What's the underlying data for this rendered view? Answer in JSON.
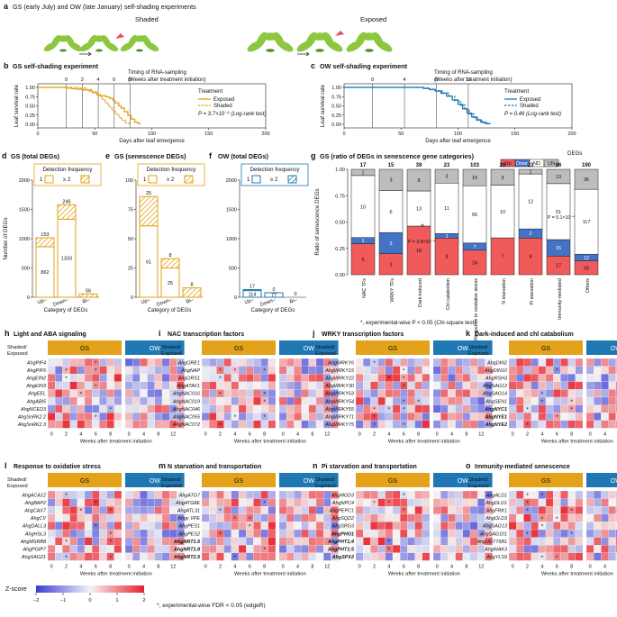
{
  "colors": {
    "gs": "#E3A21A",
    "ow": "#1F78B4",
    "up": "#F05A5A",
    "down": "#4472C4",
    "nd": "#FFFFFF",
    "un": "#BDBDBD",
    "hmin": "#3B3BD6",
    "hmid": "#F4F4F4",
    "hmax": "#E8202A",
    "plant": "#8DC63F",
    "leaf": "#A8D45A"
  },
  "panel_a": {
    "letter": "a",
    "title": "GS (early July) and OW (late January) self-shading experiments",
    "shaded_label": "Shaded",
    "exposed_label": "Exposed"
  },
  "survival": {
    "ylabel": "Leaf survival rate",
    "xlabel": "Days after leaf emergence",
    "timing_label_1": "Timing of RNA-sampling",
    "timing_label_2": "(Weeks after treatment initiation)",
    "legend_title": "Treatment",
    "legend_exposed": "Exposed",
    "legend_shaded": "Shaded",
    "yticks": [
      "0.00",
      "0.25",
      "0.50",
      "0.75",
      "1.00"
    ],
    "xticks": [
      "0",
      "50",
      "100",
      "150",
      "200"
    ]
  },
  "panel_b": {
    "letter": "b",
    "title": "GS self-shading experiment",
    "weeks": [
      "0",
      "2",
      "4",
      "6",
      "8"
    ],
    "week_days": [
      25,
      39,
      53,
      67,
      81
    ],
    "pvalue": "P = 3.7×10⁻⁶ (Log-rank test)",
    "exposed": [
      [
        0,
        1
      ],
      [
        20,
        1
      ],
      [
        25,
        0.98
      ],
      [
        30,
        0.96
      ],
      [
        35,
        0.95
      ],
      [
        40,
        0.93
      ],
      [
        45,
        0.9
      ],
      [
        48,
        0.85
      ],
      [
        52,
        0.8
      ],
      [
        55,
        0.77
      ],
      [
        60,
        0.74
      ],
      [
        63,
        0.7
      ],
      [
        66,
        0.64
      ],
      [
        68,
        0.58
      ],
      [
        71,
        0.5
      ],
      [
        73,
        0.44
      ],
      [
        76,
        0.34
      ],
      [
        79,
        0.24
      ],
      [
        82,
        0.14
      ],
      [
        85,
        0.06
      ],
      [
        88,
        0.02
      ],
      [
        90,
        0
      ]
    ],
    "shaded": [
      [
        0,
        1
      ],
      [
        25,
        1
      ],
      [
        35,
        0.98
      ],
      [
        42,
        0.94
      ],
      [
        48,
        0.88
      ],
      [
        52,
        0.78
      ],
      [
        56,
        0.68
      ],
      [
        59,
        0.58
      ],
      [
        62,
        0.48
      ],
      [
        65,
        0.38
      ],
      [
        68,
        0.28
      ],
      [
        71,
        0.18
      ],
      [
        74,
        0.1
      ],
      [
        77,
        0.04
      ],
      [
        80,
        0
      ]
    ]
  },
  "panel_c": {
    "letter": "c",
    "title": "OW self-shading experiment",
    "weeks": [
      "0",
      "4",
      "8",
      "12"
    ],
    "week_days": [
      25,
      53,
      81,
      109
    ],
    "pvalue": "P = 0.46 (Log-rank test)",
    "exposed": [
      [
        0,
        1
      ],
      [
        60,
        1
      ],
      [
        70,
        0.97
      ],
      [
        75,
        0.94
      ],
      [
        80,
        0.9
      ],
      [
        85,
        0.84
      ],
      [
        90,
        0.76
      ],
      [
        95,
        0.66
      ],
      [
        100,
        0.54
      ],
      [
        104,
        0.42
      ],
      [
        108,
        0.3
      ],
      [
        112,
        0.2
      ],
      [
        116,
        0.12
      ],
      [
        120,
        0.06
      ],
      [
        124,
        0.02
      ],
      [
        128,
        0
      ]
    ],
    "shaded": [
      [
        0,
        1
      ],
      [
        58,
        1
      ],
      [
        68,
        0.98
      ],
      [
        74,
        0.95
      ],
      [
        80,
        0.91
      ],
      [
        86,
        0.85
      ],
      [
        92,
        0.76
      ],
      [
        97,
        0.64
      ],
      [
        102,
        0.52
      ],
      [
        106,
        0.4
      ],
      [
        110,
        0.28
      ],
      [
        114,
        0.18
      ],
      [
        118,
        0.1
      ],
      [
        122,
        0.04
      ],
      [
        126,
        0
      ]
    ]
  },
  "deg_panels": {
    "ylabel": "Number of DEGs",
    "xlabel": "Category of DEGs",
    "legend_title": "Detection frequency",
    "legend_1": "1",
    "legend_2": "≥ 2",
    "categories": [
      "Up–",
      "Down–",
      "Bi–"
    ]
  },
  "panel_d": {
    "letter": "d",
    "title": "GS (total DEGs)",
    "ymax": 2000,
    "yticks": [
      "0",
      "500",
      "1000",
      "1500",
      "2000"
    ],
    "once": [
      862,
      1333,
      0
    ],
    "twice": [
      153,
      246,
      56
    ],
    "once_labels": [
      "862",
      "1333",
      ""
    ],
    "twice_labels": [
      "153",
      "246",
      "56"
    ]
  },
  "panel_e": {
    "letter": "e",
    "title": "GS (senescence DEGs)",
    "ymax": 100,
    "yticks": [
      "0",
      "25",
      "50",
      "75",
      "100"
    ],
    "once": [
      61,
      25,
      0
    ],
    "twice": [
      25,
      8,
      8
    ],
    "once_labels": [
      "61",
      "25",
      ""
    ],
    "twice_labels": [
      "25",
      "8",
      "8"
    ]
  },
  "panel_f": {
    "letter": "f",
    "title": "OW (total DEGs)",
    "ymax": 2000,
    "yticks": [
      "0",
      "500",
      "1000",
      "1500",
      "2000"
    ],
    "once": [
      114,
      77,
      0
    ],
    "twice": [
      17,
      0,
      0
    ],
    "once_labels": [
      "114",
      "77",
      ""
    ],
    "twice_labels": [
      "17",
      "0",
      "0"
    ]
  },
  "panel_g": {
    "letter": "g",
    "title": "GS (ratio of DEGs in senescence gene categories)",
    "legend_title": "DEGs",
    "legend_up": "Up",
    "legend_down": "Down",
    "legend_nd": "ND",
    "legend_un": "UN",
    "ylabel": "Ratio of senescence DEGs",
    "yticks": [
      "0.00",
      "0.25",
      "0.50",
      "0.75",
      "1.00"
    ],
    "footnote": "*, experimental-wise P < 0.05 (Chi-square test)",
    "totals": [
      "17",
      "15",
      "39",
      "23",
      "103",
      "20",
      "23",
      "96",
      "190"
    ],
    "categories": [
      "NAC TFs",
      "WRKY TFs",
      "Dark-induced",
      "Chl catabolism",
      "Response to oxidative stress",
      "N starvation",
      "Pi starvation",
      "Immunity-mediated",
      "Others"
    ],
    "up": [
      5,
      3,
      18,
      8,
      24,
      7,
      8,
      17,
      25
    ],
    "down": [
      1,
      3,
      0,
      1,
      7,
      0,
      2,
      15,
      12
    ],
    "nd": [
      10,
      6,
      13,
      11,
      56,
      10,
      12,
      51,
      117
    ],
    "un": [
      1,
      3,
      8,
      3,
      16,
      3,
      1,
      13,
      36
    ],
    "up_labels": [
      "5",
      "3",
      "18",
      "8",
      "24",
      "7",
      "8",
      "17",
      "25"
    ],
    "down_labels": [
      "1",
      "3",
      "",
      "1",
      "7",
      "",
      "2",
      "15",
      "12"
    ],
    "nd_labels": [
      "10",
      "6",
      "13",
      "11",
      "56",
      "10",
      "12",
      "51",
      "117"
    ],
    "un_labels": [
      "1",
      "3",
      "8",
      "3",
      "16",
      "3",
      "1",
      "13",
      "36"
    ],
    "pval_dark": "P = 3.8×10⁻⁴",
    "pval_immune": "P = 5.1×10⁻⁴"
  },
  "heatmap_common": {
    "row_header_1": "Shaded/",
    "row_header_2": "Exposed",
    "gs_label": "GS",
    "ow_label": "OW",
    "gs_ticks": [
      "0",
      "2",
      "4",
      "6",
      "8"
    ],
    "ow_ticks": [
      "0",
      "4",
      "8",
      "12"
    ],
    "xlabel": "Weeks after treatment initiation"
  },
  "heatmaps": [
    {
      "letter": "h",
      "title": "Light and ABA signaling",
      "genes": [
        "AhgPIF4",
        "AhgPIF5",
        "AhgEIN2",
        "AhgEIN3",
        "AhgEEL",
        "AhgABI5",
        "AhgNCED3",
        "AhgSnRK2.2",
        "AhgSnRK2.3"
      ],
      "bold": [
        false,
        false,
        false,
        false,
        false,
        false,
        false,
        false,
        false
      ]
    },
    {
      "letter": "i",
      "title": "NAC transcription factors",
      "genes": [
        "AhgORE1",
        "AhgNAP",
        "AhgORS1",
        "AhgATAF1",
        "AhgNAC016",
        "AhgNAC019",
        "AhgNAC046",
        "AhgNAC055",
        "AhgNAC072"
      ],
      "bold": [
        false,
        false,
        false,
        false,
        false,
        false,
        false,
        false,
        false
      ]
    },
    {
      "letter": "j",
      "title": "WRKY transcription factors",
      "genes": [
        "AhgWRKY6",
        "AhgWRKY15",
        "AhgWRKY22",
        "AhgWRKY30",
        "AhgWRKY53",
        "AhgWRKY54",
        "AhgWRKY55",
        "AhgWRKY71",
        "AhgWRKY75"
      ],
      "bold": [
        false,
        false,
        false,
        false,
        false,
        false,
        false,
        false,
        false
      ]
    },
    {
      "letter": "k",
      "title": "Dark-induced and chl catabolism",
      "genes": [
        "AhgDIN2",
        "AhgDIN10",
        "AhgRSH3",
        "AhgSAG12",
        "AhgSAG14",
        "AhgSEN1",
        "AhgNYC1",
        "AhgNYE1",
        "AhgNYE2"
      ],
      "bold": [
        false,
        false,
        false,
        false,
        false,
        false,
        true,
        true,
        true
      ]
    },
    {
      "letter": "l",
      "title": "Response to oxidative stress",
      "genes": [
        "AhgACA12",
        "AhgBAP2",
        "AhgCAX7",
        "AhgCV",
        "AhgDALL3",
        "AhgHSL3",
        "AhgMSRB8",
        "AhgPGIP7",
        "AhgSAG21"
      ],
      "bold": [
        false,
        false,
        false,
        false,
        false,
        false,
        false,
        false,
        false
      ]
    },
    {
      "letter": "m",
      "title": "N starvation and transportation",
      "genes": [
        "AhgATG7",
        "AhgATG8E",
        "AhgATL31",
        "Ahgγ VPE",
        "AhgPES1",
        "AhgPES2",
        "AhgNRT1.5",
        "AhgNRT1.8",
        "AhgNRT2.5"
      ],
      "bold": [
        false,
        false,
        false,
        false,
        false,
        false,
        true,
        true,
        true
      ]
    },
    {
      "letter": "n",
      "title": "Pi starvation and transportation",
      "genes": [
        "AhgMGD3",
        "AhgNPC4",
        "AhgPEPC1",
        "AhgSQD2",
        "AhgSRG3",
        "AhgPHO1",
        "AhgPHT1;4",
        "AhgPHT1;5",
        "AhgSPX2"
      ],
      "bold": [
        false,
        false,
        false,
        false,
        false,
        true,
        true,
        true,
        true
      ]
    },
    {
      "letter": "o",
      "title": "Immunity-mediated senescence",
      "genes": [
        "AhgALD1",
        "AhgDLO1",
        "AhgFRK1",
        "AhgOLD3",
        "AhgSAG13",
        "AhgSAG101",
        "AhgUGT76B1",
        "AhgWAK3",
        "AhgYLS9"
      ],
      "bold": [
        false,
        false,
        false,
        false,
        false,
        false,
        false,
        false,
        false
      ]
    }
  ],
  "zscore": {
    "label": "Z-score",
    "ticks": [
      "−2",
      "−1",
      "0",
      "1",
      "2"
    ],
    "footnote": "*, experimental-wise FDR < 0.05 (edgeR)"
  }
}
